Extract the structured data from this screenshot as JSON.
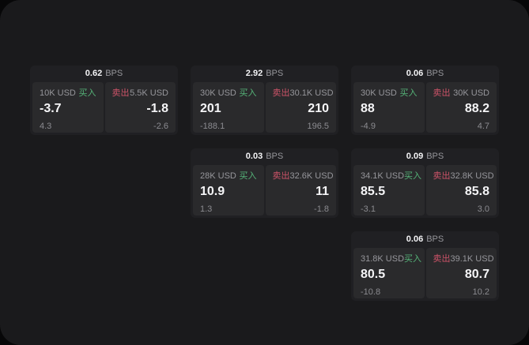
{
  "units": {
    "bps": "BPS"
  },
  "labels": {
    "buy": "买入",
    "sell": "卖出"
  },
  "colors": {
    "buy": "#55b378",
    "sell": "#cd5368",
    "panel": "#2a2a2c",
    "card": "#202023",
    "canvas": "#1a1a1c",
    "value_text": "#f5f5f7",
    "muted_text": "#96969b"
  },
  "cards": [
    {
      "bps": "0.62",
      "buy": {
        "amount": "10K USD",
        "value": "-3.7",
        "sub": "4.3"
      },
      "sell": {
        "amount": "5.5K USD",
        "value": "-1.8",
        "sub": "-2.6"
      }
    },
    {
      "bps": "2.92",
      "buy": {
        "amount": "30K USD",
        "value": "201",
        "sub": "-188.1"
      },
      "sell": {
        "amount": "30.1K USD",
        "value": "210",
        "sub": "196.5"
      }
    },
    {
      "bps": "0.06",
      "buy": {
        "amount": "30K USD",
        "value": "88",
        "sub": "-4.9"
      },
      "sell": {
        "amount": "30K USD",
        "value": "88.2",
        "sub": "4.7"
      }
    },
    {
      "bps": "0.03",
      "buy": {
        "amount": "28K USD",
        "value": "10.9",
        "sub": "1.3"
      },
      "sell": {
        "amount": "32.6K USD",
        "value": "11",
        "sub": "-1.8"
      }
    },
    {
      "bps": "0.09",
      "buy": {
        "amount": "34.1K USD",
        "value": "85.5",
        "sub": "-3.1"
      },
      "sell": {
        "amount": "32.8K USD",
        "value": "85.8",
        "sub": "3.0"
      }
    },
    {
      "bps": "0.06",
      "buy": {
        "amount": "31.8K USD",
        "value": "80.5",
        "sub": "-10.8"
      },
      "sell": {
        "amount": "39.1K USD",
        "value": "80.7",
        "sub": "10.2"
      }
    }
  ]
}
